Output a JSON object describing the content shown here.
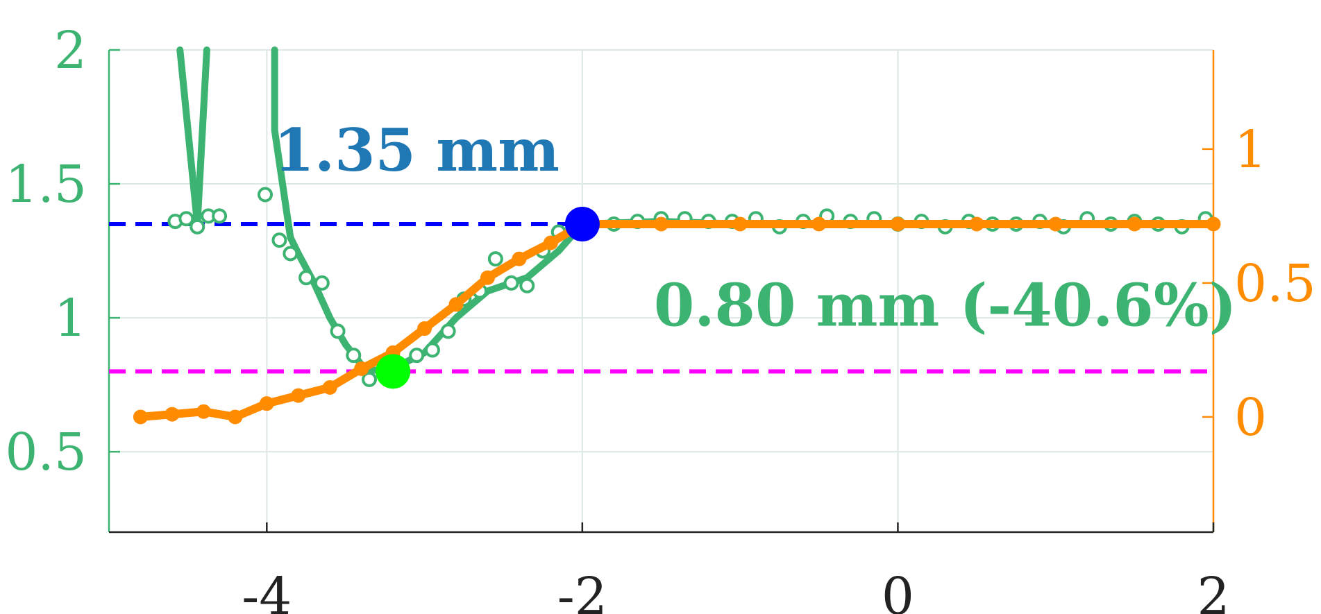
{
  "chart_data": {
    "type": "line",
    "title": "",
    "xlabel": "",
    "ylabel": "",
    "xlim": [
      -5.0,
      2.0
    ],
    "ylim_left": [
      0.2,
      2.0
    ],
    "ylim_right": [
      -0.43,
      1.37
    ],
    "grid": true,
    "x_ticks": [
      -4,
      -2,
      0,
      2
    ],
    "x_tick_labels": [
      "-4",
      "-2",
      "0",
      "2"
    ],
    "y_left_ticks": [
      0.5,
      1,
      1.5,
      2
    ],
    "y_left_tick_labels": [
      "0.5",
      "1",
      "1.5",
      "2"
    ],
    "y_right_ticks": [
      0,
      0.5,
      1
    ],
    "y_right_tick_labels": [
      "0",
      "0.5",
      "1"
    ],
    "colors": {
      "green": "#3cb371",
      "orange": "#ff8c00",
      "blue": "#0000ff",
      "magenta": "#ff00ff",
      "lime": "#00ff00",
      "annot_blue": "#1f77b4",
      "grid": "#dde8e4",
      "axis_left": "#3cb371",
      "axis_right": "#ff8c00",
      "axis_bottom": "#222222"
    },
    "series": [
      {
        "axis": "left",
        "style": "line",
        "color": "#3cb371",
        "x": [
          -4.55,
          -4.44,
          -4.38
        ],
        "y": [
          2.0,
          1.35,
          2.0
        ]
      },
      {
        "axis": "left",
        "style": "line",
        "color": "#3cb371",
        "x": [
          -3.95,
          -3.95,
          -3.9,
          -3.85,
          -3.8,
          -3.7,
          -3.6,
          -3.5,
          -3.38,
          -3.25,
          -3.1,
          -3.0,
          -2.8,
          -2.6,
          -2.35,
          -2.15,
          -2.0
        ],
        "y": [
          2.0,
          1.7,
          1.5,
          1.3,
          1.24,
          1.13,
          1.0,
          0.9,
          0.81,
          0.8,
          0.84,
          0.87,
          1.0,
          1.1,
          1.15,
          1.25,
          1.35
        ]
      },
      {
        "axis": "left",
        "style": "scatter",
        "color": "#3cb371",
        "x": [
          -4.58,
          -4.51,
          -4.44,
          -4.37,
          -4.3,
          -4.01,
          -3.92,
          -3.85,
          -3.75,
          -3.65,
          -3.55,
          -3.45,
          -3.35,
          -3.25,
          -3.15,
          -3.05,
          -2.95,
          -2.85,
          -2.75,
          -2.65,
          -2.55,
          -2.45,
          -2.35,
          -2.25,
          -2.15
        ],
        "y": [
          1.36,
          1.37,
          1.34,
          1.38,
          1.38,
          1.46,
          1.29,
          1.24,
          1.15,
          1.13,
          0.95,
          0.86,
          0.77,
          0.8,
          0.78,
          0.86,
          0.88,
          0.95,
          1.07,
          1.1,
          1.22,
          1.13,
          1.12,
          1.25,
          1.32
        ]
      },
      {
        "axis": "left",
        "style": "line",
        "color": "#3cb371",
        "x": [
          -2.0,
          -1.5,
          -1.0,
          -0.5,
          0.0,
          0.5,
          1.0,
          1.5,
          2.0
        ],
        "y": [
          1.35,
          1.36,
          1.35,
          1.35,
          1.35,
          1.35,
          1.35,
          1.35,
          1.35
        ]
      },
      {
        "axis": "left",
        "style": "scatter",
        "color": "#3cb371",
        "x": [
          -1.95,
          -1.8,
          -1.65,
          -1.5,
          -1.35,
          -1.2,
          -1.05,
          -0.9,
          -0.75,
          -0.6,
          -0.45,
          -0.3,
          -0.15,
          0.0,
          0.15,
          0.3,
          0.45,
          0.6,
          0.75,
          0.9,
          1.05,
          1.2,
          1.35,
          1.5,
          1.65,
          1.8,
          1.95
        ],
        "y": [
          1.37,
          1.35,
          1.36,
          1.37,
          1.37,
          1.36,
          1.36,
          1.37,
          1.34,
          1.36,
          1.38,
          1.36,
          1.37,
          1.35,
          1.36,
          1.34,
          1.36,
          1.35,
          1.35,
          1.36,
          1.34,
          1.37,
          1.35,
          1.36,
          1.35,
          1.34,
          1.37
        ]
      },
      {
        "axis": "right",
        "style": "line-markers",
        "color": "#ff8c00",
        "x": [
          -4.8,
          -4.6,
          -4.4,
          -4.2,
          -4.0,
          -3.8,
          -3.6,
          -3.4,
          -3.2,
          -3.0,
          -2.8,
          -2.6,
          -2.4,
          -2.2,
          -2.0,
          -1.5,
          -1.0,
          -0.5,
          0.0,
          0.5,
          1.0,
          1.5,
          2.0
        ],
        "y": [
          0.0,
          0.01,
          0.02,
          0.0,
          0.05,
          0.08,
          0.11,
          0.18,
          0.24,
          0.33,
          0.42,
          0.52,
          0.59,
          0.65,
          0.72,
          0.72,
          0.72,
          0.72,
          0.72,
          0.72,
          0.72,
          0.72,
          0.72
        ]
      }
    ],
    "reference_lines": [
      {
        "axis": "left",
        "y": 1.35,
        "color": "#0000ff",
        "style": "dashed",
        "x_from": -5.0,
        "x_to": -2.0
      },
      {
        "axis": "left",
        "y": 0.8,
        "color": "#ff00ff",
        "style": "dashed",
        "x_from": -5.0,
        "x_to": 2.0
      }
    ],
    "highlight_points": [
      {
        "axis": "left",
        "x": -2.0,
        "y": 1.35,
        "color": "#0000ff"
      },
      {
        "axis": "left",
        "x": -3.2,
        "y": 0.8,
        "color": "#00ff00"
      }
    ],
    "annotations": [
      {
        "text": "1.35 mm",
        "color": "#1f77b4",
        "x": -3.05,
        "y": 1.55
      },
      {
        "text": "0.80 mm (-40.6%)",
        "color": "#3cb371",
        "x": 0.3,
        "y": 0.97
      }
    ]
  }
}
